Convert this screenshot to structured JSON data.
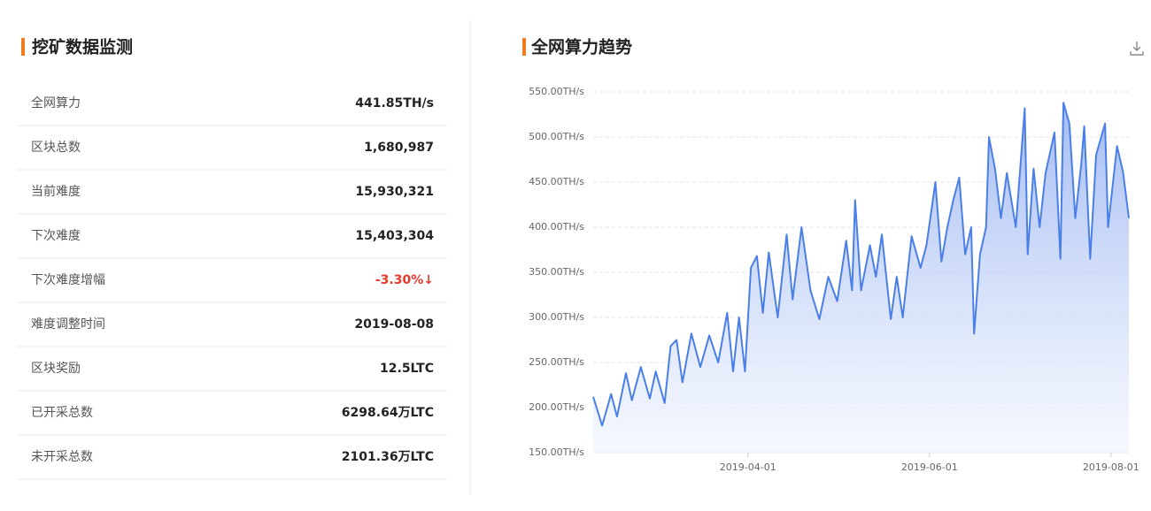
{
  "panel": {
    "title": "挖矿数据监测",
    "rows": [
      [
        "全网算力",
        "441.85TH/s"
      ],
      [
        "区块总数",
        "1,680,987"
      ],
      [
        "当前难度",
        "15,930,321"
      ],
      [
        "下次难度",
        "15,403,304"
      ],
      [
        "下次难度增幅",
        "-3.30%↓"
      ],
      [
        "难度调整时间",
        "2019-08-08"
      ],
      [
        "区块奖励",
        "12.5LTC"
      ],
      [
        "已开采总数",
        "6298.64万LTC"
      ],
      [
        "未开采总数",
        "2101.36万LTC"
      ]
    ]
  },
  "chart_data": {
    "type": "area",
    "title": "全网算力趋势",
    "color": "#4a7fe8",
    "grid": true,
    "x": [
      "2019-02-08",
      "2019-02-11",
      "2019-02-14",
      "2019-02-16",
      "2019-02-19",
      "2019-02-21",
      "2019-02-24",
      "2019-02-27",
      "2019-03-01",
      "2019-03-04",
      "2019-03-06",
      "2019-03-08",
      "2019-03-10",
      "2019-03-13",
      "2019-03-16",
      "2019-03-19",
      "2019-03-22",
      "2019-03-25",
      "2019-03-27",
      "2019-03-29",
      "2019-03-31",
      "2019-04-02",
      "2019-04-04",
      "2019-04-06",
      "2019-04-08",
      "2019-04-11",
      "2019-04-14",
      "2019-04-16",
      "2019-04-19",
      "2019-04-22",
      "2019-04-25",
      "2019-04-28",
      "2019-05-01",
      "2019-05-04",
      "2019-05-06",
      "2019-05-07",
      "2019-05-09",
      "2019-05-12",
      "2019-05-14",
      "2019-05-16",
      "2019-05-19",
      "2019-05-21",
      "2019-05-23",
      "2019-05-26",
      "2019-05-29",
      "2019-05-31",
      "2019-06-03",
      "2019-06-05",
      "2019-06-07",
      "2019-06-09",
      "2019-06-11",
      "2019-06-13",
      "2019-06-15",
      "2019-06-16",
      "2019-06-18",
      "2019-06-20",
      "2019-06-21",
      "2019-06-23",
      "2019-06-25",
      "2019-06-27",
      "2019-06-30",
      "2019-07-03",
      "2019-07-04",
      "2019-07-06",
      "2019-07-08",
      "2019-07-10",
      "2019-07-13",
      "2019-07-15",
      "2019-07-16",
      "2019-07-18",
      "2019-07-20",
      "2019-07-22",
      "2019-07-23",
      "2019-07-25",
      "2019-07-27",
      "2019-07-30",
      "2019-07-31",
      "2019-08-03",
      "2019-08-05",
      "2019-08-07"
    ],
    "values": [
      212,
      180,
      215,
      190,
      238,
      208,
      245,
      210,
      240,
      205,
      268,
      275,
      228,
      282,
      245,
      280,
      250,
      305,
      240,
      300,
      240,
      355,
      368,
      305,
      372,
      300,
      392,
      320,
      400,
      330,
      298,
      345,
      318,
      385,
      330,
      430,
      330,
      380,
      345,
      392,
      298,
      345,
      300,
      390,
      355,
      380,
      450,
      362,
      400,
      430,
      455,
      370,
      400,
      282,
      370,
      400,
      500,
      465,
      410,
      460,
      400,
      532,
      370,
      465,
      400,
      460,
      505,
      365,
      538,
      515,
      410,
      470,
      512,
      365,
      480,
      515,
      400,
      490,
      462,
      410
    ],
    "xlim": [
      "2019-02-08",
      "2019-08-07"
    ],
    "xticks": [
      "2019-04-01",
      "2019-06-01",
      "2019-08-01"
    ],
    "ylim": [
      150,
      550
    ],
    "yticks": [
      {
        "value": 150,
        "label": "150.00TH/s"
      },
      {
        "value": 200,
        "label": "200.00TH/s"
      },
      {
        "value": 250,
        "label": "250.00TH/s"
      },
      {
        "value": 300,
        "label": "300.00TH/s"
      },
      {
        "value": 350,
        "label": "350.00TH/s"
      },
      {
        "value": 400,
        "label": "400.00TH/s"
      },
      {
        "value": 450,
        "label": "450.00TH/s"
      },
      {
        "value": 500,
        "label": "500.00TH/s"
      },
      {
        "value": 550,
        "label": "550.00TH/s"
      }
    ]
  }
}
